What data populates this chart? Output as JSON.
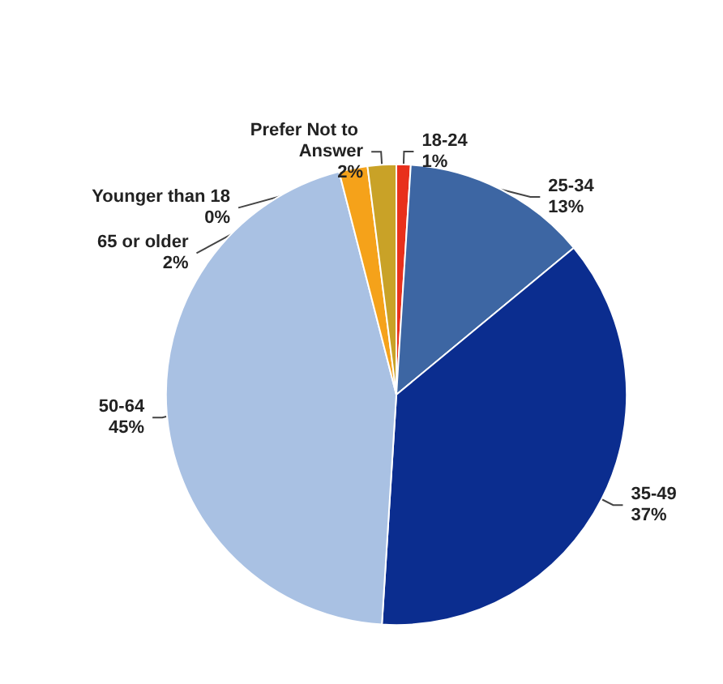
{
  "chart_data": {
    "type": "pie",
    "categories": [
      "Younger than 18",
      "18-24",
      "25-34",
      "35-49",
      "50-64",
      "65 or older",
      "Prefer Not to Answer"
    ],
    "values": [
      0,
      1,
      13,
      37,
      45,
      2,
      2
    ],
    "value_labels": [
      "0%",
      "1%",
      "13%",
      "37%",
      "45%",
      "2%",
      "2%"
    ],
    "colors": [
      "#6a6a7a",
      "#e8301c",
      "#3d66a3",
      "#0b2d8f",
      "#a9c1e3",
      "#f5a21a",
      "#c9a227"
    ],
    "legend": false
  }
}
